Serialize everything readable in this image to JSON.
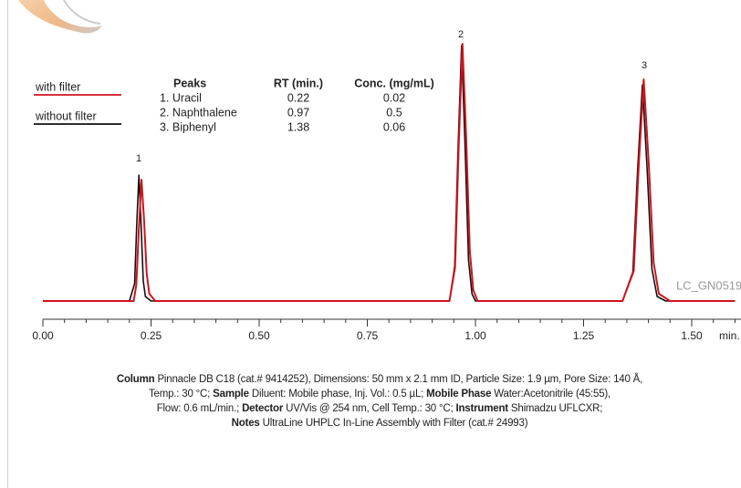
{
  "chart_data": {
    "type": "line",
    "series": [
      {
        "name": "with filter",
        "color": "#d0141e",
        "x": [
          0,
          0.21,
          0.216,
          0.222,
          0.228,
          0.234,
          0.24,
          0.246,
          0.26,
          0.94,
          0.953,
          0.9615,
          0.97,
          0.9785,
          0.987,
          0.995,
          1.005,
          1.34,
          1.366,
          1.3775,
          1.389,
          1.4005,
          1.412,
          1.424,
          1.45,
          1.6
        ],
        "values": [
          0,
          0,
          18,
          80,
          133,
          88,
          30,
          8,
          0,
          0,
          37,
          172,
          282,
          180,
          55,
          12,
          0,
          0,
          33,
          148,
          243,
          152,
          42,
          8,
          0,
          0
        ]
      },
      {
        "name": "without filter",
        "color": "#111111",
        "x": [
          0,
          0.2,
          0.212,
          0.217,
          0.222,
          0.227,
          0.232,
          0.237,
          0.25,
          0.94,
          0.952,
          0.96,
          0.968,
          0.976,
          0.984,
          0.992,
          1.0,
          1.34,
          1.364,
          1.375,
          1.386,
          1.397,
          1.408,
          1.42,
          1.44,
          1.6
        ],
        "values": [
          0,
          0,
          19,
          84,
          138,
          84,
          22,
          5,
          0,
          0,
          38,
          170,
          280,
          170,
          45,
          8,
          0,
          0,
          32,
          144,
          237,
          144,
          35,
          5,
          0,
          0
        ]
      }
    ],
    "xlim": [
      0,
      1.6
    ],
    "ylim": [
      0,
      300
    ],
    "xticks": [
      {
        "value": 0,
        "label": "0.00"
      },
      {
        "value": 0.25,
        "label": "0.25"
      },
      {
        "value": 0.5,
        "label": "0.50"
      },
      {
        "value": 0.75,
        "label": "0.75"
      },
      {
        "value": 1,
        "label": "1.00"
      },
      {
        "value": 1.25,
        "label": "1.25"
      },
      {
        "value": 1.5,
        "label": "1.50"
      }
    ],
    "xminorticks": [
      0.05,
      0.1,
      0.15,
      0.2,
      0.3,
      0.35,
      0.4,
      0.45,
      0.55,
      0.6,
      0.65,
      0.7,
      0.8,
      0.85,
      0.9,
      0.95,
      1.05,
      1.1,
      1.15,
      1.2,
      1.3,
      1.35,
      1.4,
      1.45,
      1.55,
      1.6
    ],
    "x_unit": "min.",
    "peak_labels": [
      "1",
      "2",
      "3"
    ],
    "watermark": "LC_GN0519",
    "peak_table": {
      "columns": [
        "Peaks",
        "RT (min.)",
        "Conc. (mg/mL)"
      ],
      "rows": [
        [
          "1. Uracil",
          0.22,
          0.02
        ],
        [
          "2. Naphthalene",
          0.97,
          0.5
        ],
        [
          "3. Biphenyl",
          1.38,
          0.06
        ]
      ]
    },
    "notes": [
      [
        {
          "bold": "Column"
        },
        {
          "text": "Pinnacle DB C18 (cat.# 9414252), Dimensions: 50 mm x 2.1 mm ID, Particle Size: 1.9 µm, Pore Size: 140 Å,"
        }
      ],
      [
        {
          "text": "Temp.: 30 °C;"
        },
        {
          "bold": "Sample"
        },
        {
          "text": "Diluent: Mobile phase, Inj. Vol.: 0.5 µL;"
        },
        {
          "bold": "Mobile Phase"
        },
        {
          "text": "Water:Acetonitrile (45:55),"
        }
      ],
      [
        {
          "text": "Flow: 0.6 mL/min.;"
        },
        {
          "bold": "Detector"
        },
        {
          "text": "UV/Vis @ 254 nm, Cell Temp.: 30 °C;"
        },
        {
          "bold": "Instrument"
        },
        {
          "text": "Shimadzu UFLCXR;"
        }
      ],
      [
        {
          "bold": "Notes"
        },
        {
          "text": "UltraLine UHPLC In-Line Assembly with Filter (cat.# 24993)"
        }
      ]
    ]
  }
}
